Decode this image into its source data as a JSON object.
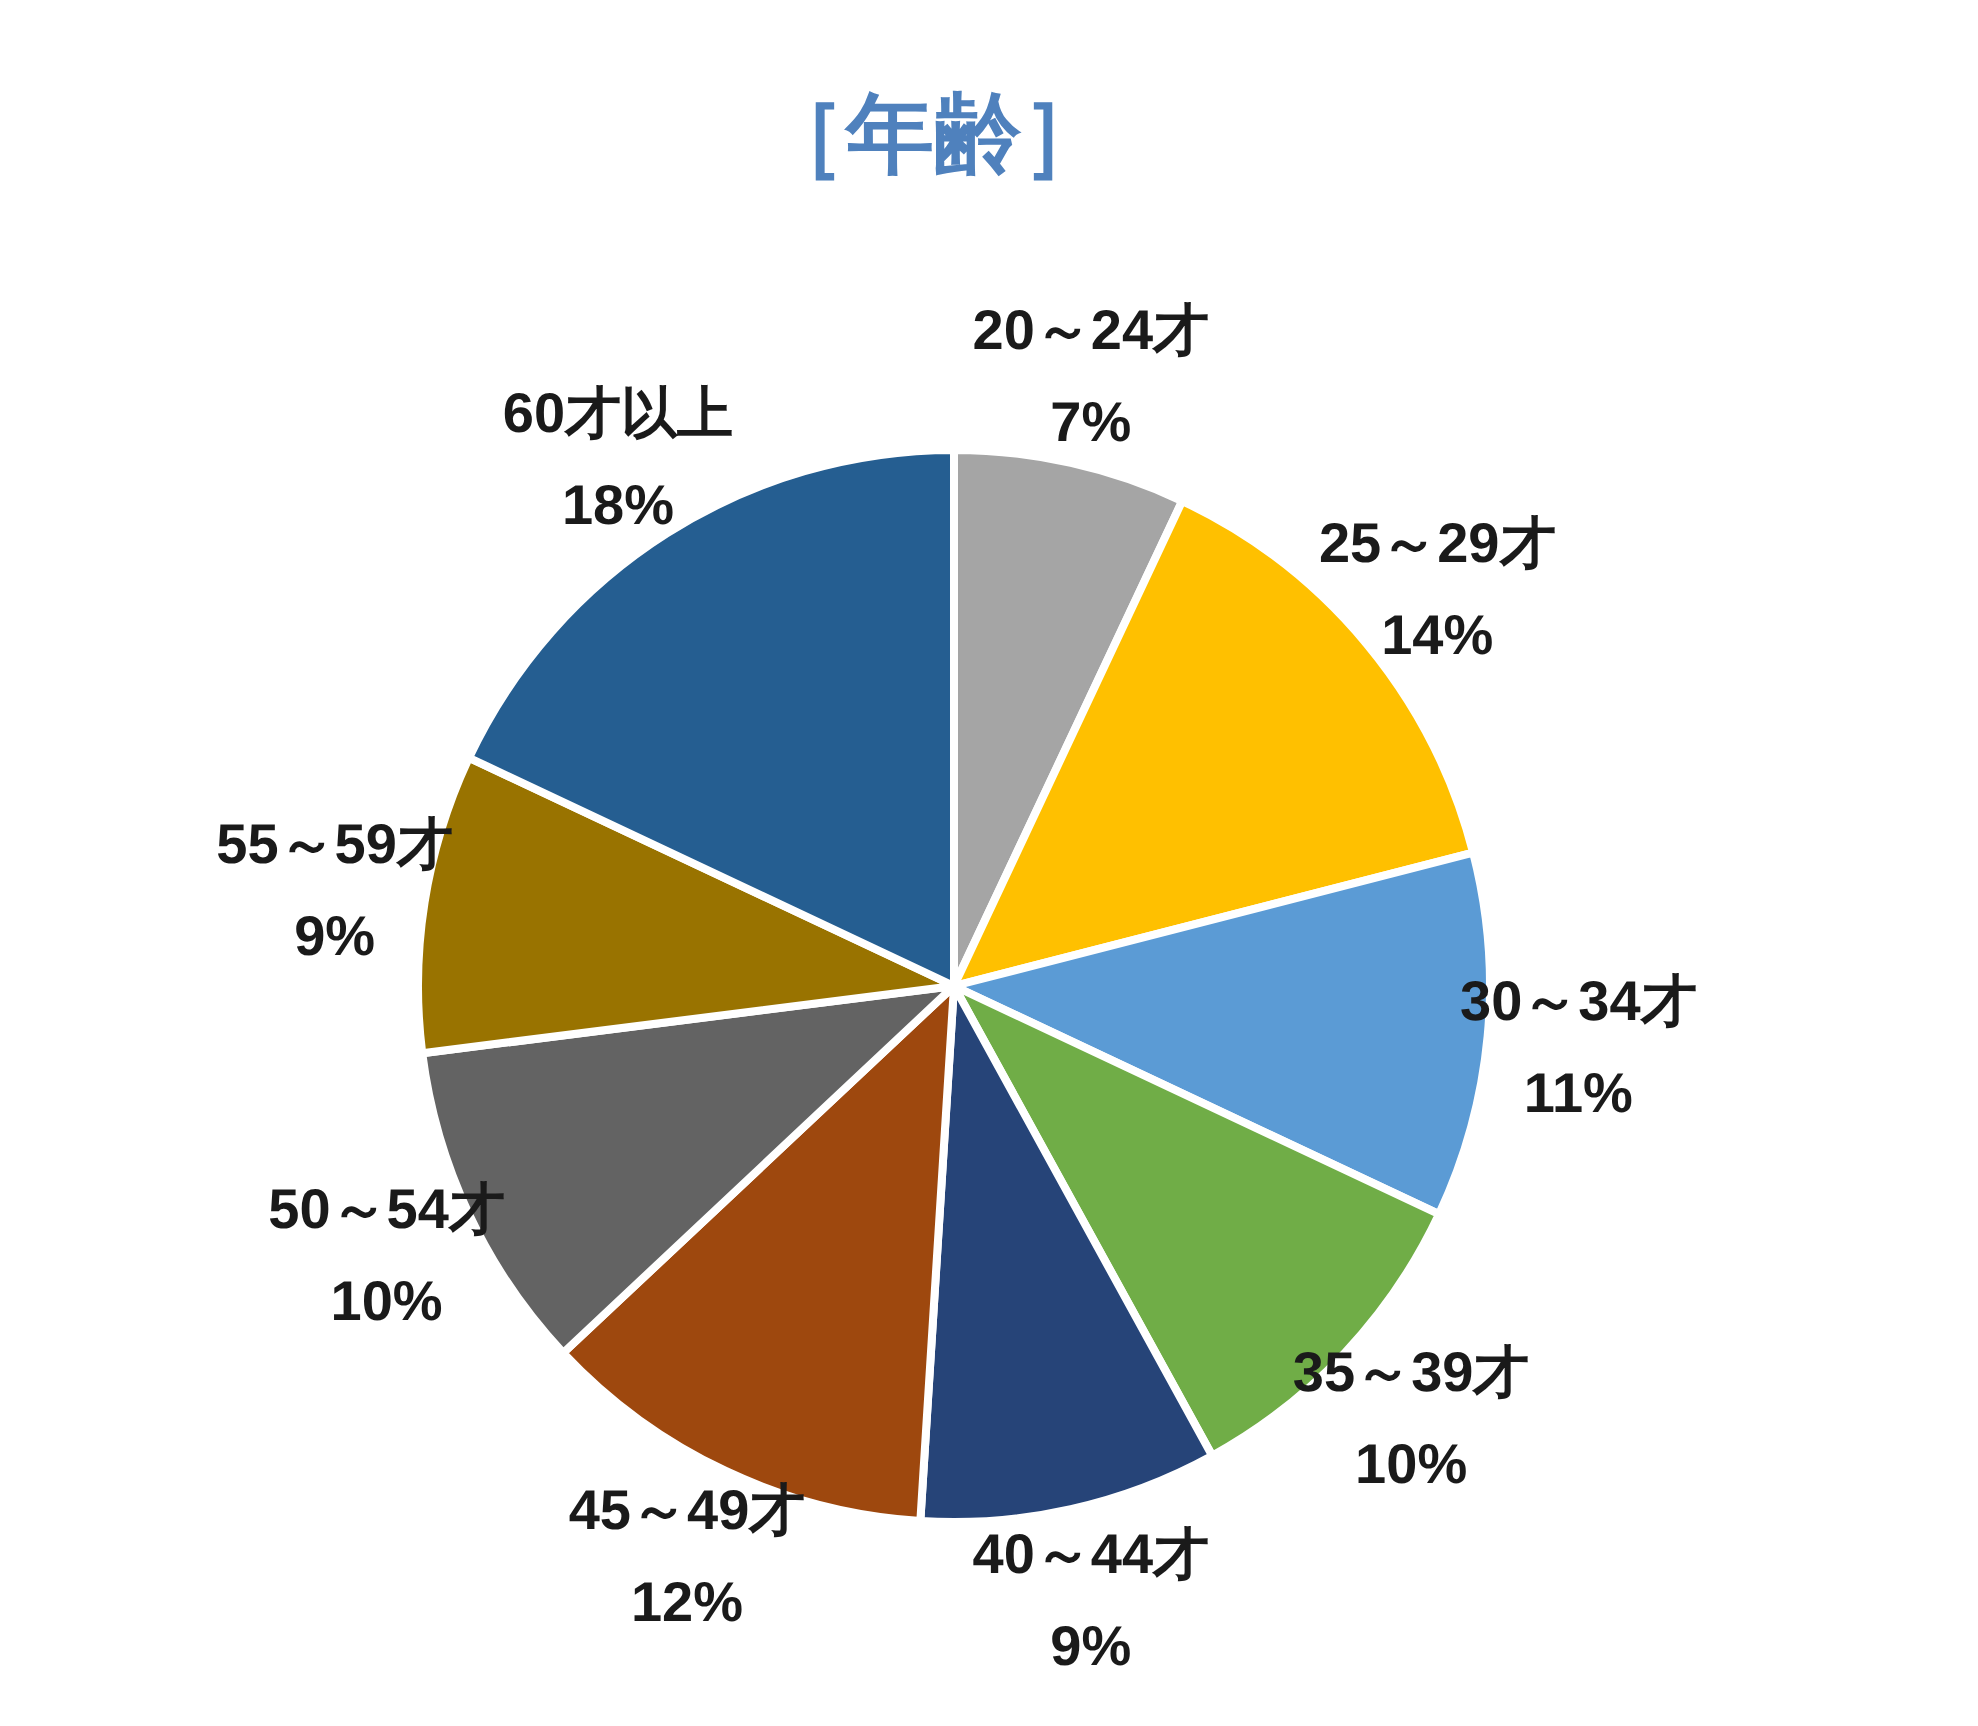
{
  "chart_data": {
    "type": "pie",
    "title": "［年齢］",
    "categories": [
      "20～24才",
      "25～29才",
      "30～34才",
      "35～39才",
      "40～44才",
      "45～49才",
      "50～54才",
      "55～59才",
      "60才以上"
    ],
    "values": [
      7,
      14,
      11,
      10,
      9,
      12,
      10,
      9,
      18
    ],
    "value_labels": [
      "7%",
      "14%",
      "11%",
      "10%",
      "9%",
      "12%",
      "10%",
      "9%",
      "18%"
    ],
    "colors": [
      "#a5a5a5",
      "#ffc000",
      "#5b9bd5",
      "#70ad47",
      "#264478",
      "#9e480e",
      "#636363",
      "#997300",
      "#255e91"
    ]
  }
}
